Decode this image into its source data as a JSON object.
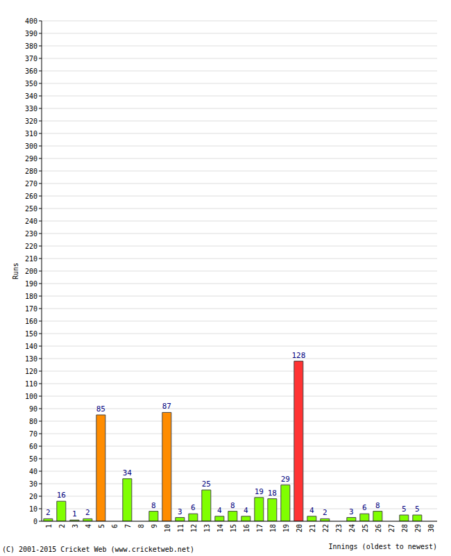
{
  "chart_data": {
    "type": "bar",
    "x_label": "Innings (oldest to newest)",
    "y_label": "Runs",
    "annotations": [
      "(C) 2001-2015 Cricket Web (www.cricketweb.net)"
    ],
    "categories": [
      "1",
      "2",
      "3",
      "4",
      "5",
      "6",
      "7",
      "8",
      "9",
      "10",
      "11",
      "12",
      "13",
      "14",
      "15",
      "16",
      "17",
      "18",
      "19",
      "20",
      "21",
      "22",
      "23",
      "24",
      "25",
      "26",
      "27",
      "28",
      "29",
      "30"
    ],
    "values": [
      2,
      16,
      1,
      2,
      85,
      0,
      34,
      0,
      8,
      87,
      3,
      6,
      25,
      4,
      8,
      4,
      19,
      18,
      29,
      128,
      4,
      2,
      0,
      3,
      6,
      8,
      0,
      5,
      5,
      0
    ],
    "colors": [
      "#80ff00",
      "#80ff00",
      "#80ff00",
      "#80ff00",
      "#ff8c00",
      "#80ff00",
      "#80ff00",
      "#80ff00",
      "#80ff00",
      "#ff8c00",
      "#80ff00",
      "#80ff00",
      "#80ff00",
      "#80ff00",
      "#80ff00",
      "#80ff00",
      "#80ff00",
      "#80ff00",
      "#80ff00",
      "#ff3333",
      "#80ff00",
      "#80ff00",
      "#80ff00",
      "#80ff00",
      "#80ff00",
      "#80ff00",
      "#80ff00",
      "#80ff00",
      "#80ff00",
      "#80ff00"
    ],
    "ylim": [
      0,
      400
    ],
    "yticks": [
      0,
      10,
      20,
      30,
      40,
      50,
      60,
      70,
      80,
      90,
      100,
      110,
      120,
      130,
      140,
      150,
      160,
      170,
      180,
      190,
      200,
      210,
      220,
      230,
      240,
      250,
      260,
      270,
      280,
      290,
      300,
      310,
      320,
      330,
      340,
      350,
      360,
      370,
      380,
      390,
      400
    ],
    "grid": true,
    "data_labels": true
  }
}
